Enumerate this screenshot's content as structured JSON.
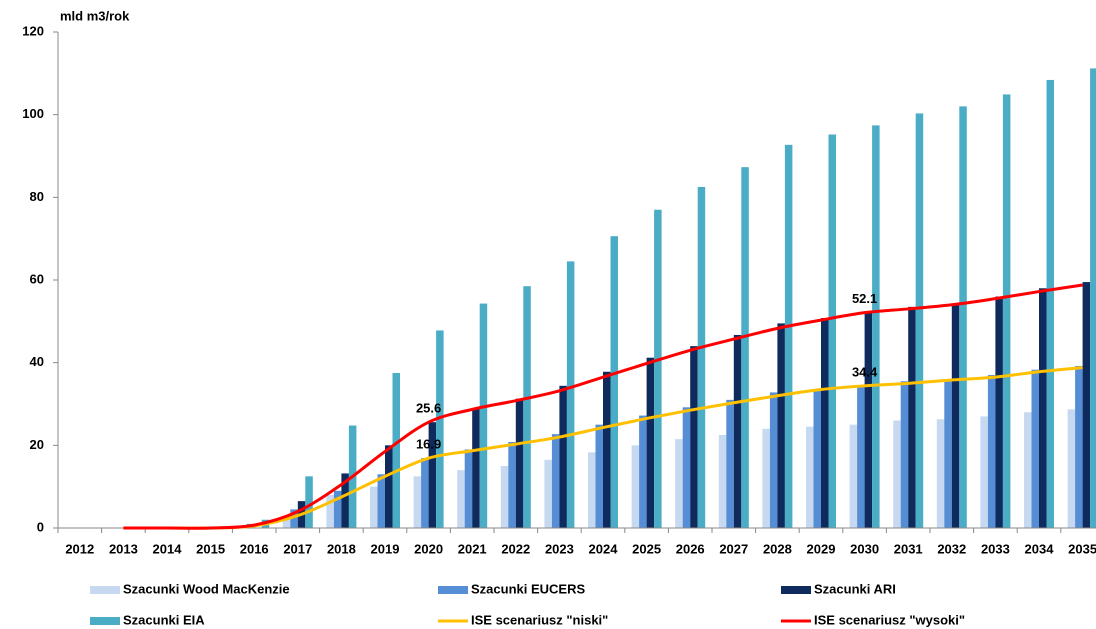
{
  "chart_data": {
    "type": "bar",
    "y_unit": "mld m3/rok",
    "categories": [
      "2012",
      "2013",
      "2014",
      "2015",
      "2016",
      "2017",
      "2018",
      "2019",
      "2020",
      "2021",
      "2022",
      "2023",
      "2024",
      "2025",
      "2026",
      "2027",
      "2028",
      "2029",
      "2030",
      "2031",
      "2032",
      "2033",
      "2034",
      "2035"
    ],
    "ylim": [
      0,
      120
    ],
    "yticks": [
      0,
      20,
      40,
      60,
      80,
      100,
      120
    ],
    "grid": false,
    "series": [
      {
        "name": "Szacunki Wood MacKenzie",
        "kind": "bar",
        "color": "#c6d9f0",
        "values": [
          0,
          0,
          0,
          0,
          0,
          2,
          8,
          10,
          12.5,
          14,
          15,
          16.5,
          18.3,
          20,
          21.5,
          22.5,
          24,
          24.5,
          25,
          26,
          26.3,
          27,
          28,
          28.7
        ]
      },
      {
        "name": "Szacunki EUCERS",
        "kind": "bar",
        "color": "#558ed5",
        "values": [
          0,
          0,
          0,
          0,
          1,
          4.5,
          9,
          13,
          16.9,
          19,
          20.8,
          22.7,
          25,
          27.2,
          29.2,
          31,
          32.8,
          33.5,
          34.4,
          35.5,
          36,
          37,
          38.3,
          39.2
        ]
      },
      {
        "name": "Szacunki ARI",
        "kind": "bar",
        "color": "#0f2a5c",
        "values": [
          0,
          0,
          0,
          0,
          0,
          6.5,
          13.2,
          20,
          25.6,
          29,
          31.3,
          34.4,
          37.8,
          41.2,
          44,
          46.7,
          49.5,
          50.8,
          52.1,
          53.5,
          54.3,
          56,
          58,
          59.5
        ]
      },
      {
        "name": "Szacunki EIA",
        "kind": "bar",
        "color": "#4bacc6",
        "values": [
          0,
          0,
          0,
          0,
          2,
          12.5,
          24.8,
          37.5,
          47.8,
          54.3,
          58.5,
          64.5,
          70.6,
          77,
          82.5,
          87.3,
          92.7,
          95.2,
          97.4,
          100.3,
          102,
          104.9,
          108.4,
          111.2
        ]
      },
      {
        "name": "ISE scenariusz \"niski\"",
        "kind": "line",
        "color": "#ffc000",
        "values": [
          null,
          0,
          0,
          0,
          0.5,
          3,
          7.5,
          12.5,
          16.9,
          18.7,
          20.3,
          22,
          24.3,
          26.5,
          28.5,
          30.3,
          32,
          33.5,
          34.4,
          35,
          35.8,
          36.5,
          37.8,
          38.8
        ],
        "labeled": [
          8,
          18
        ]
      },
      {
        "name": "ISE scenariusz \"wysoki\"",
        "kind": "line",
        "color": "#ff0000",
        "values": [
          null,
          0,
          0,
          0,
          0.7,
          4,
          10.5,
          18.5,
          25.6,
          28.7,
          30.8,
          33.2,
          36.5,
          39.8,
          43,
          45.7,
          48.3,
          50.3,
          52.1,
          53,
          54,
          55.5,
          57.2,
          58.8
        ],
        "labeled": [
          8,
          18
        ]
      }
    ]
  }
}
